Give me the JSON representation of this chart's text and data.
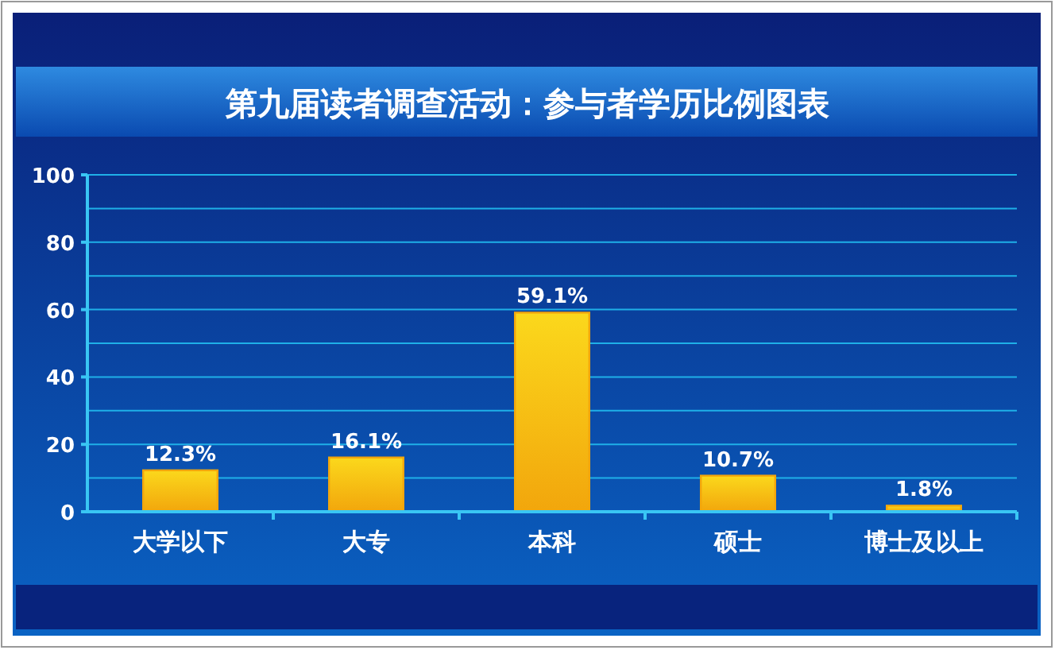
{
  "chart_data": {
    "type": "bar",
    "title": "第九届读者调查活动：参与者学历比例图表",
    "categories": [
      "大学以下",
      "大专",
      "本科",
      "硕士",
      "博士及以上"
    ],
    "values": [
      12.3,
      16.1,
      59.1,
      10.7,
      1.8
    ],
    "value_labels": [
      "12.3%",
      "16.1%",
      "59.1%",
      "10.7%",
      "1.8%"
    ],
    "color": "#f2a60c",
    "ylim": [
      0,
      100
    ],
    "yticks": [
      0,
      {
        "value": 10,
        "label": null
      },
      20,
      {
        "value": 30,
        "label": null
      },
      40,
      {
        "value": 50,
        "label": null
      },
      60,
      {
        "value": 70,
        "label": null
      },
      80,
      {
        "value": 90,
        "label": null
      },
      100
    ],
    "grid": true
  }
}
